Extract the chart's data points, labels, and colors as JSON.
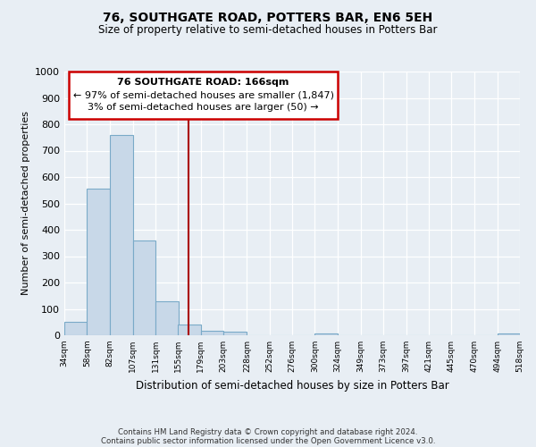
{
  "title": "76, SOUTHGATE ROAD, POTTERS BAR, EN6 5EH",
  "subtitle": "Size of property relative to semi-detached houses in Potters Bar",
  "xlabel": "Distribution of semi-detached houses by size in Potters Bar",
  "ylabel": "Number of semi-detached properties",
  "bar_edges": [
    34,
    58,
    82,
    107,
    131,
    155,
    179,
    203,
    228,
    252,
    276,
    300,
    324,
    349,
    373,
    397,
    421,
    445,
    470,
    494,
    518
  ],
  "bar_heights": [
    50,
    555,
    760,
    360,
    130,
    40,
    18,
    15,
    0,
    0,
    0,
    8,
    0,
    0,
    0,
    0,
    0,
    0,
    0,
    8
  ],
  "bar_color": "#c8d8e8",
  "bar_edge_color": "#7aaac8",
  "property_line_x": 166,
  "property_line_color": "#aa0000",
  "annotation_box_color": "#cc0000",
  "annotation_line1": "76 SOUTHGATE ROAD: 166sqm",
  "annotation_line2": "← 97% of semi-detached houses are smaller (1,847)",
  "annotation_line3": "3% of semi-detached houses are larger (50) →",
  "ylim": [
    0,
    1000
  ],
  "yticks": [
    0,
    100,
    200,
    300,
    400,
    500,
    600,
    700,
    800,
    900,
    1000
  ],
  "bg_color": "#e8eef4",
  "grid_color": "#ffffff",
  "footer_line1": "Contains HM Land Registry data © Crown copyright and database right 2024.",
  "footer_line2": "Contains public sector information licensed under the Open Government Licence v3.0."
}
